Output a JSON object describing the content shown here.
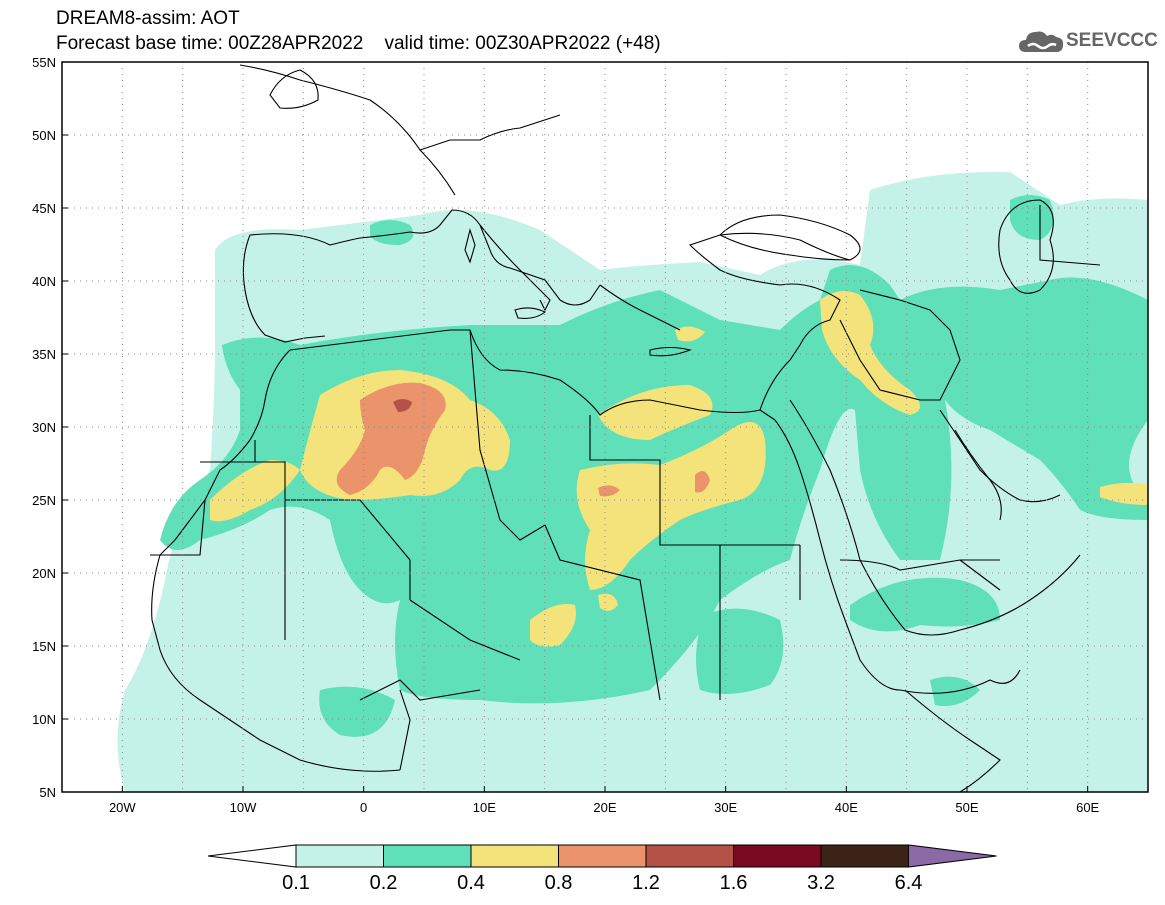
{
  "header": {
    "title_line1": "DREAM8-assim: AOT",
    "title_line2": "Forecast base time: 00Z28APR2022    valid time: 00Z30APR2022 (+48)",
    "logo_text": "SEEVCCC"
  },
  "map": {
    "lat_labels": [
      "55N",
      "50N",
      "45N",
      "40N",
      "35N",
      "30N",
      "25N",
      "20N",
      "15N",
      "10N",
      "5N"
    ],
    "lon_labels": [
      "20W",
      "10W",
      "0",
      "10E",
      "20E",
      "30E",
      "40E",
      "50E",
      "60E"
    ],
    "lat_range": [
      5,
      55
    ],
    "lon_range": [
      -25,
      65
    ],
    "grid": "dotted"
  },
  "colorbar": {
    "labels": [
      "0.1",
      "0.2",
      "0.4",
      "0.8",
      "1.2",
      "1.6",
      "3.2",
      "6.4"
    ],
    "colors": {
      "under": "#ffffff",
      "c1": "#c4f2e8",
      "c2": "#5fe0b8",
      "c3": "#f4e27a",
      "c4": "#eb936b",
      "c5": "#b35348",
      "c6": "#7a0a22",
      "c7": "#3b2415",
      "over": "#8d6aa6"
    }
  }
}
